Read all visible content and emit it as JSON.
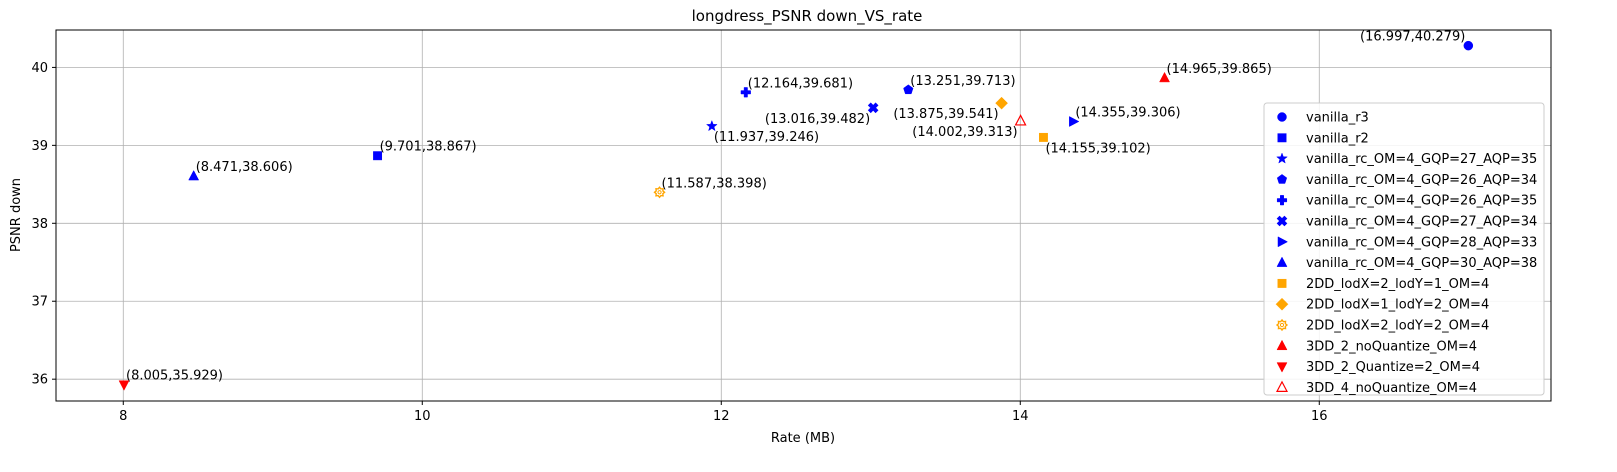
{
  "chart_data": {
    "type": "scatter",
    "title": "longdress_PSNR down_VS_rate",
    "xlabel": "Rate (MB)",
    "ylabel": "PSNR down",
    "xlim": [
      7.55,
      17.55
    ],
    "ylim": [
      35.72,
      40.48
    ],
    "xticks": [
      8,
      10,
      12,
      14,
      16
    ],
    "yticks": [
      36,
      37,
      38,
      39,
      40
    ],
    "grid": true,
    "legend_position": "right",
    "series": [
      {
        "name": "vanilla_r3",
        "marker": "circle",
        "color": "#0000ff",
        "filled": true,
        "points": [
          {
            "x": 16.997,
            "y": 40.279,
            "label": "(16.997,40.279)",
            "label_pos": "upper-left"
          }
        ]
      },
      {
        "name": "vanilla_r2",
        "marker": "square",
        "color": "#0000ff",
        "filled": true,
        "points": [
          {
            "x": 9.701,
            "y": 38.867,
            "label": "(9.701,38.867)",
            "label_pos": "upper-right"
          }
        ]
      },
      {
        "name": "vanilla_rc_OM=4_GQP=27_AQP=35",
        "marker": "star",
        "color": "#0000ff",
        "filled": true,
        "points": [
          {
            "x": 11.937,
            "y": 39.246,
            "label": "(11.937,39.246)",
            "label_pos": "lower-right"
          }
        ]
      },
      {
        "name": "vanilla_rc_OM=4_GQP=26_AQP=34",
        "marker": "pentagon",
        "color": "#0000ff",
        "filled": true,
        "points": [
          {
            "x": 13.251,
            "y": 39.713,
            "label": "(13.251,39.713)",
            "label_pos": "upper-right"
          }
        ]
      },
      {
        "name": "vanilla_rc_OM=4_GQP=26_AQP=35",
        "marker": "plus",
        "color": "#0000ff",
        "filled": true,
        "points": [
          {
            "x": 12.164,
            "y": 39.681,
            "label": "(12.164,39.681)",
            "label_pos": "upper-right"
          }
        ]
      },
      {
        "name": "vanilla_rc_OM=4_GQP=27_AQP=34",
        "marker": "x",
        "color": "#0000ff",
        "filled": true,
        "points": [
          {
            "x": 13.016,
            "y": 39.482,
            "label": "(13.016,39.482)",
            "label_pos": "lower-left"
          }
        ]
      },
      {
        "name": "vanilla_rc_OM=4_GQP=28_AQP=33",
        "marker": "triangle-right",
        "color": "#0000ff",
        "filled": true,
        "points": [
          {
            "x": 14.355,
            "y": 39.306,
            "label": "(14.355,39.306)",
            "label_pos": "upper-right"
          }
        ]
      },
      {
        "name": "vanilla_rc_OM=4_GQP=30_AQP=38",
        "marker": "triangle-up",
        "color": "#0000ff",
        "filled": true,
        "points": [
          {
            "x": 8.471,
            "y": 38.606,
            "label": "(8.471,38.606)",
            "label_pos": "upper-right"
          }
        ]
      },
      {
        "name": "2DD_lodX=2_lodY=1_OM=4",
        "marker": "square",
        "color": "#ffa500",
        "filled": true,
        "points": [
          {
            "x": 14.155,
            "y": 39.102,
            "label": "(14.155,39.102)",
            "label_pos": "lower-right"
          }
        ]
      },
      {
        "name": "2DD_lodX=1_lodY=2_OM=4",
        "marker": "diamond",
        "color": "#ffa500",
        "filled": true,
        "points": [
          {
            "x": 13.875,
            "y": 39.541,
            "label": "(13.875,39.541)",
            "label_pos": "lower-left"
          }
        ]
      },
      {
        "name": "2DD_lodX=2_lodY=2_OM=4",
        "marker": "gear",
        "color": "#ffa500",
        "filled": true,
        "points": [
          {
            "x": 11.587,
            "y": 38.398,
            "label": "(11.587,38.398)",
            "label_pos": "upper-right"
          }
        ]
      },
      {
        "name": "3DD_2_noQuantize_OM=4",
        "marker": "triangle-up",
        "color": "#ff0000",
        "filled": true,
        "points": [
          {
            "x": 14.965,
            "y": 39.865,
            "label": "(14.965,39.865)",
            "label_pos": "upper-right"
          }
        ]
      },
      {
        "name": "3DD_2_Quantize=2_OM=4",
        "marker": "triangle-down",
        "color": "#ff0000",
        "filled": true,
        "points": [
          {
            "x": 8.005,
            "y": 35.929,
            "label": "(8.005,35.929)",
            "label_pos": "upper-right"
          }
        ]
      },
      {
        "name": "3DD_4_noQuantize_OM=4",
        "marker": "triangle-up",
        "color": "#ff0000",
        "filled": false,
        "points": [
          {
            "x": 14.002,
            "y": 39.313,
            "label": "(14.002,39.313)",
            "label_pos": "lower-left"
          }
        ]
      }
    ]
  }
}
